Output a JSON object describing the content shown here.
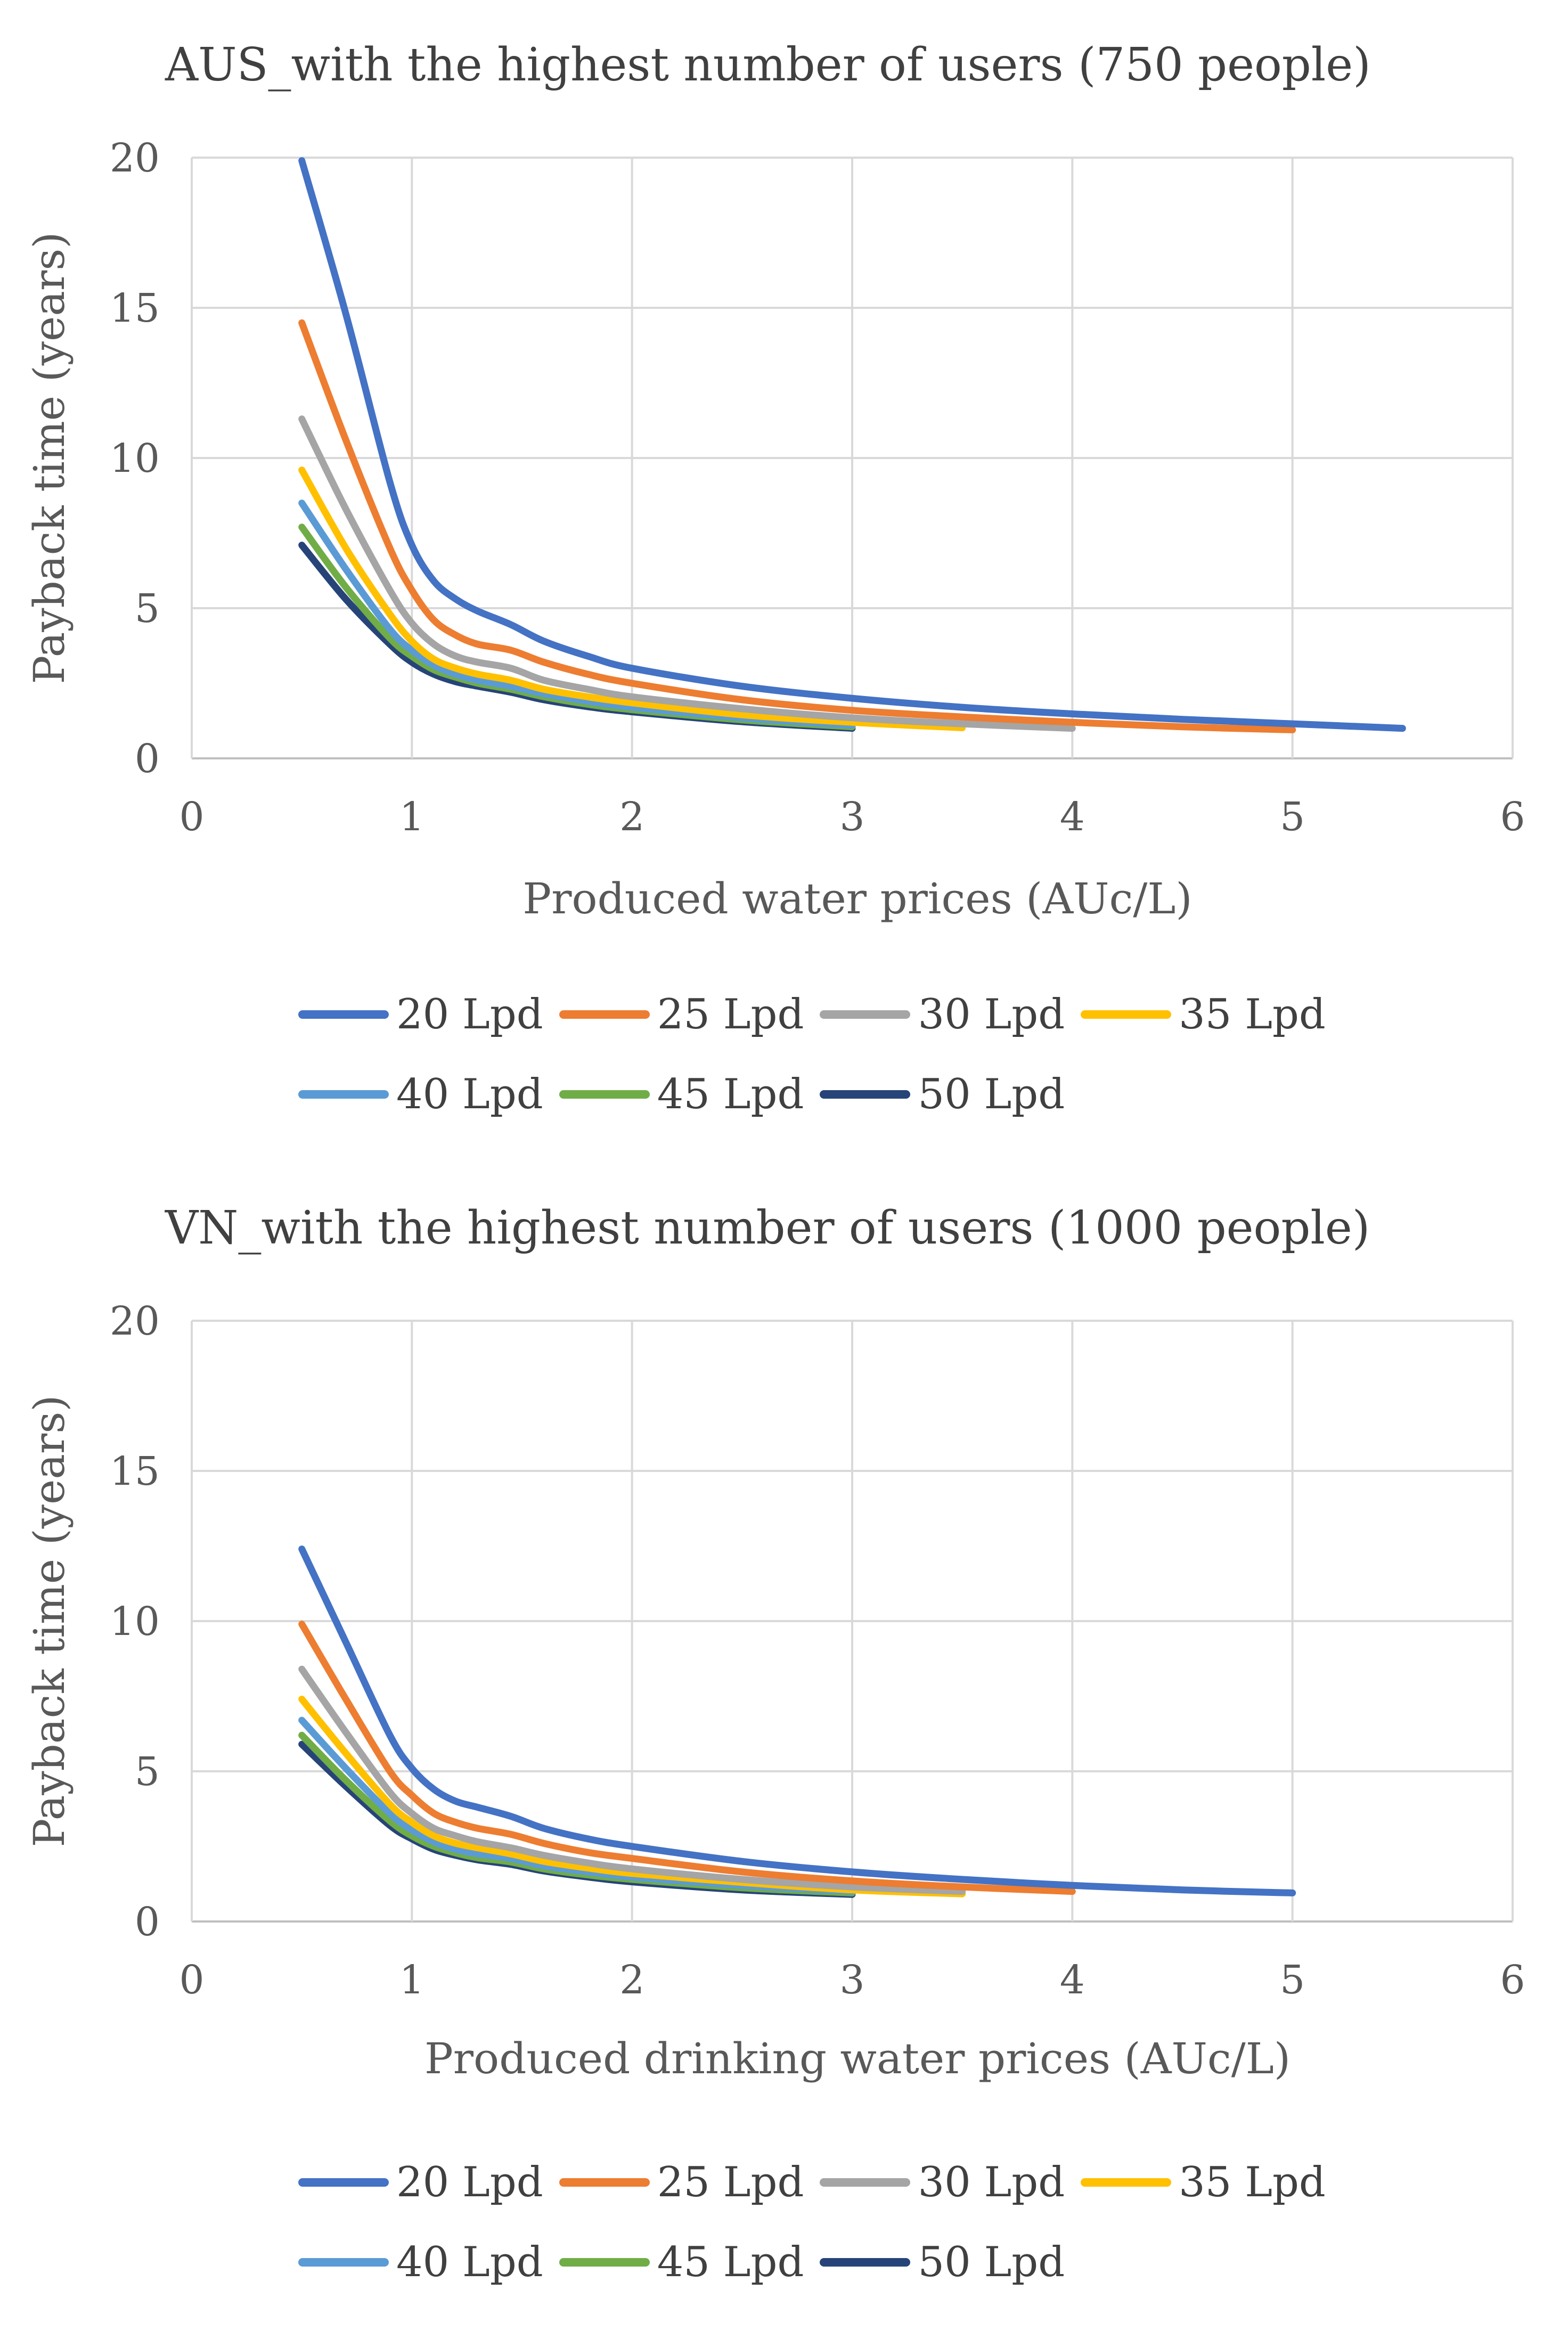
{
  "chart_data": [
    {
      "type": "line",
      "title": "AUS_with the highest number of users (750 people)",
      "xlabel": "Produced water prices (AUc/L)",
      "ylabel": "Payback time (years)",
      "xlim": [
        0,
        6
      ],
      "ylim": [
        0,
        20
      ],
      "x_ticks": [
        "0",
        "1",
        "2",
        "3",
        "4",
        "5",
        "6"
      ],
      "y_ticks": [
        "0",
        "5",
        "10",
        "15",
        "20"
      ],
      "grid": true,
      "legend_position": "bottom",
      "series": [
        {
          "name": "20 Lpd",
          "color": "#4472C4",
          "x": [
            0.5,
            0.7,
            0.9,
            1.0,
            1.1,
            1.2,
            1.3,
            1.45,
            1.6,
            1.8,
            2.0,
            2.5,
            3.0,
            3.5,
            4.0,
            4.5,
            5.0,
            5.5
          ],
          "y": [
            19.9,
            14.8,
            9.2,
            7.1,
            5.9,
            5.3,
            4.9,
            4.45,
            3.9,
            3.4,
            3.0,
            2.4,
            2.0,
            1.7,
            1.48,
            1.3,
            1.15,
            1.0
          ]
        },
        {
          "name": "25 Lpd",
          "color": "#ED7D31",
          "x": [
            0.5,
            0.7,
            0.9,
            1.0,
            1.1,
            1.2,
            1.3,
            1.45,
            1.6,
            1.8,
            2.0,
            2.5,
            3.0,
            3.5,
            4.0,
            4.5,
            5.0
          ],
          "y": [
            14.5,
            10.6,
            7.0,
            5.6,
            4.6,
            4.1,
            3.8,
            3.6,
            3.2,
            2.8,
            2.5,
            1.95,
            1.6,
            1.38,
            1.2,
            1.05,
            0.95
          ]
        },
        {
          "name": "30 Lpd",
          "color": "#A5A5A5",
          "x": [
            0.5,
            0.7,
            0.9,
            1.0,
            1.1,
            1.2,
            1.3,
            1.45,
            1.6,
            1.8,
            2.0,
            2.5,
            3.0,
            3.5,
            4.0
          ],
          "y": [
            11.3,
            8.3,
            5.6,
            4.5,
            3.8,
            3.4,
            3.2,
            3.0,
            2.6,
            2.3,
            2.05,
            1.65,
            1.35,
            1.15,
            1.0
          ]
        },
        {
          "name": "35 Lpd",
          "color": "#FFC000",
          "x": [
            0.5,
            0.7,
            0.9,
            1.0,
            1.1,
            1.2,
            1.3,
            1.45,
            1.6,
            1.8,
            2.0,
            2.5,
            3.0,
            3.5
          ],
          "y": [
            9.6,
            7.0,
            4.8,
            3.9,
            3.3,
            3.0,
            2.8,
            2.6,
            2.3,
            2.05,
            1.85,
            1.45,
            1.2,
            1.02
          ]
        },
        {
          "name": "40 Lpd",
          "color": "#5B9BD5",
          "x": [
            0.5,
            0.7,
            0.9,
            1.0,
            1.1,
            1.2,
            1.3,
            1.45,
            1.6,
            1.8,
            2.0,
            2.5,
            3.0
          ],
          "y": [
            8.5,
            6.3,
            4.3,
            3.6,
            3.1,
            2.8,
            2.6,
            2.4,
            2.15,
            1.9,
            1.7,
            1.35,
            1.1
          ]
        },
        {
          "name": "45 Lpd",
          "color": "#70AD47",
          "x": [
            0.5,
            0.7,
            0.9,
            1.0,
            1.1,
            1.2,
            1.3,
            1.45,
            1.6,
            1.8,
            2.0,
            2.5,
            3.0
          ],
          "y": [
            7.7,
            5.7,
            4.0,
            3.4,
            2.95,
            2.7,
            2.5,
            2.3,
            2.05,
            1.8,
            1.62,
            1.28,
            1.05
          ]
        },
        {
          "name": "50 Lpd",
          "color": "#264478",
          "x": [
            0.5,
            0.7,
            0.9,
            1.0,
            1.1,
            1.2,
            1.3,
            1.45,
            1.6,
            1.8,
            2.0,
            2.5,
            3.0
          ],
          "y": [
            7.1,
            5.3,
            3.8,
            3.2,
            2.8,
            2.55,
            2.4,
            2.2,
            1.95,
            1.72,
            1.55,
            1.22,
            1.0
          ]
        }
      ]
    },
    {
      "type": "line",
      "title": "VN_with the highest number of users (1000 people)",
      "xlabel": "Produced drinking water prices (AUc/L)",
      "ylabel": "Payback time (years)",
      "xlim": [
        0,
        6
      ],
      "ylim": [
        0,
        20
      ],
      "x_ticks": [
        "0",
        "1",
        "2",
        "3",
        "4",
        "5",
        "6"
      ],
      "y_ticks": [
        "0",
        "5",
        "10",
        "15",
        "20"
      ],
      "grid": true,
      "legend_position": "bottom",
      "series": [
        {
          "name": "20 Lpd",
          "color": "#4472C4",
          "x": [
            0.5,
            0.7,
            0.9,
            1.0,
            1.1,
            1.2,
            1.3,
            1.45,
            1.6,
            1.8,
            2.0,
            2.5,
            3.0,
            3.5,
            4.0,
            4.5,
            5.0
          ],
          "y": [
            12.4,
            9.3,
            6.2,
            5.1,
            4.4,
            4.0,
            3.8,
            3.5,
            3.1,
            2.75,
            2.5,
            2.0,
            1.65,
            1.4,
            1.2,
            1.05,
            0.95
          ]
        },
        {
          "name": "25 Lpd",
          "color": "#ED7D31",
          "x": [
            0.5,
            0.7,
            0.9,
            1.0,
            1.1,
            1.2,
            1.3,
            1.45,
            1.6,
            1.8,
            2.0,
            2.5,
            3.0,
            3.5,
            4.0
          ],
          "y": [
            9.9,
            7.4,
            5.0,
            4.2,
            3.6,
            3.3,
            3.1,
            2.9,
            2.6,
            2.3,
            2.1,
            1.65,
            1.35,
            1.15,
            1.0
          ]
        },
        {
          "name": "30 Lpd",
          "color": "#A5A5A5",
          "x": [
            0.5,
            0.7,
            0.9,
            1.0,
            1.1,
            1.2,
            1.3,
            1.45,
            1.6,
            1.8,
            2.0,
            2.5,
            3.0,
            3.5
          ],
          "y": [
            8.4,
            6.3,
            4.3,
            3.6,
            3.1,
            2.85,
            2.65,
            2.45,
            2.2,
            1.95,
            1.75,
            1.4,
            1.15,
            1.0
          ]
        },
        {
          "name": "35 Lpd",
          "color": "#FFC000",
          "x": [
            0.5,
            0.7,
            0.9,
            1.0,
            1.1,
            1.2,
            1.3,
            1.45,
            1.6,
            1.8,
            2.0,
            2.5,
            3.0,
            3.5
          ],
          "y": [
            7.4,
            5.6,
            3.9,
            3.3,
            2.85,
            2.6,
            2.45,
            2.25,
            2.0,
            1.78,
            1.6,
            1.3,
            1.05,
            0.92
          ]
        },
        {
          "name": "40 Lpd",
          "color": "#5B9BD5",
          "x": [
            0.5,
            0.7,
            0.9,
            1.0,
            1.1,
            1.2,
            1.3,
            1.45,
            1.6,
            1.8,
            2.0,
            2.5,
            3.0
          ],
          "y": [
            6.7,
            5.1,
            3.6,
            3.05,
            2.65,
            2.4,
            2.25,
            2.1,
            1.85,
            1.65,
            1.48,
            1.2,
            1.0
          ]
        },
        {
          "name": "45 Lpd",
          "color": "#70AD47",
          "x": [
            0.5,
            0.7,
            0.9,
            1.0,
            1.1,
            1.2,
            1.3,
            1.45,
            1.6,
            1.8,
            2.0,
            2.5,
            3.0
          ],
          "y": [
            6.2,
            4.7,
            3.35,
            2.85,
            2.5,
            2.28,
            2.12,
            1.98,
            1.75,
            1.55,
            1.4,
            1.12,
            0.95
          ]
        },
        {
          "name": "50 Lpd",
          "color": "#264478",
          "x": [
            0.5,
            0.7,
            0.9,
            1.0,
            1.1,
            1.2,
            1.3,
            1.45,
            1.6,
            1.8,
            2.0,
            2.5,
            3.0
          ],
          "y": [
            5.9,
            4.5,
            3.2,
            2.75,
            2.4,
            2.2,
            2.05,
            1.9,
            1.68,
            1.48,
            1.32,
            1.05,
            0.9
          ]
        }
      ]
    }
  ]
}
